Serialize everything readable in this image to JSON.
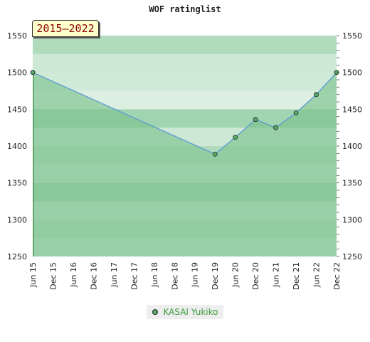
{
  "chart_data": {
    "type": "area",
    "title": "WOF ratinglist",
    "period": "2015–2022",
    "ylim": [
      1250,
      1550
    ],
    "yticks": [
      1250,
      1300,
      1350,
      1400,
      1450,
      1500,
      1550
    ],
    "x_ticks": [
      "Jun 15",
      "Dec 15",
      "Jun 16",
      "Dec 16",
      "Jun 17",
      "Dec 17",
      "Jun 18",
      "Dec 18",
      "Jun 19",
      "Dec 19",
      "Jun 20",
      "Dec 20",
      "Jun 21",
      "Dec 21",
      "Jun 22",
      "Dec 22"
    ],
    "series": [
      {
        "name": "KASAI Yukiko",
        "points": [
          {
            "x": "Jun 15",
            "y": 1500
          },
          {
            "x": "Dec 19",
            "y": 1389
          },
          {
            "x": "Jun 20",
            "y": 1412
          },
          {
            "x": "Dec 20",
            "y": 1436
          },
          {
            "x": "Jun 21",
            "y": 1425
          },
          {
            "x": "Dec 21",
            "y": 1445
          },
          {
            "x": "Jun 22",
            "y": 1470
          },
          {
            "x": "Dec 22",
            "y": 1500
          }
        ]
      }
    ],
    "legend_position": "bottom-center",
    "grid": true,
    "colors": {
      "line": "#5b9bd5",
      "marker": "#55aa66",
      "fill": "#88c898",
      "band_light": "#cde8d5",
      "band_dark": "#b0dcbd",
      "legend_text": "#3a9a3a",
      "badge_bg": "#ffffcc",
      "badge_text": "#8b0000"
    }
  }
}
